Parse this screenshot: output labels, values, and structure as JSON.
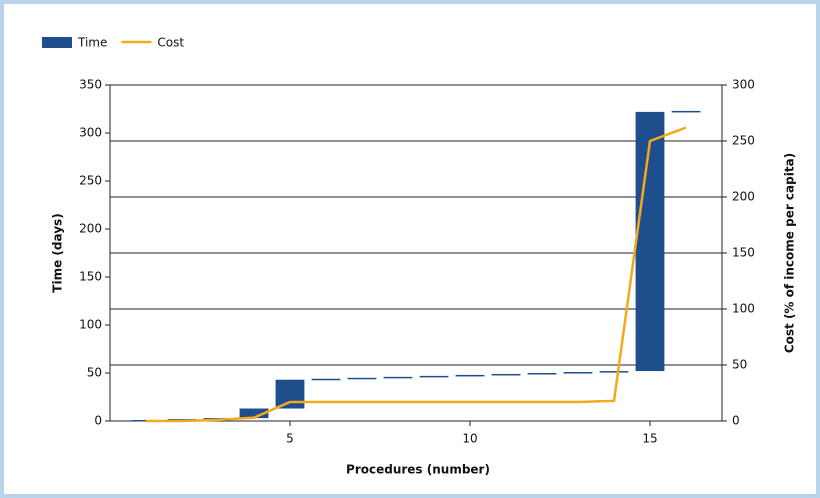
{
  "chart_data": {
    "type": "waterfall-combo",
    "x_label": "Procedures (number)",
    "y_label": "Time (days)",
    "y2_label": "Cost (% of income per capita)",
    "x": [
      1,
      2,
      3,
      4,
      5,
      6,
      7,
      8,
      9,
      10,
      11,
      12,
      13,
      14,
      15,
      16
    ],
    "xlim": [
      0,
      17
    ],
    "xticks": [
      5,
      10,
      15
    ],
    "ylim": [
      0,
      350
    ],
    "yticks": [
      0,
      50,
      100,
      150,
      200,
      250,
      300,
      350
    ],
    "y2lim": [
      0,
      300
    ],
    "y2ticks": [
      0,
      50,
      100,
      150,
      200,
      250,
      300
    ],
    "grid": true,
    "legend": "top-left",
    "series": [
      {
        "name": "Time",
        "color": "#1f4e8c",
        "kind": "bar",
        "values": [
          1,
          1,
          1,
          10,
          30,
          1,
          1,
          1,
          1,
          1,
          1,
          1,
          1,
          1,
          270,
          1
        ]
      },
      {
        "name": "Cost",
        "color": "#f5a81c",
        "kind": "line",
        "axis": "y2",
        "values": [
          0,
          0,
          1,
          3,
          17,
          17,
          17,
          17,
          17,
          17,
          17,
          17,
          17,
          18,
          250,
          262
        ]
      }
    ]
  }
}
